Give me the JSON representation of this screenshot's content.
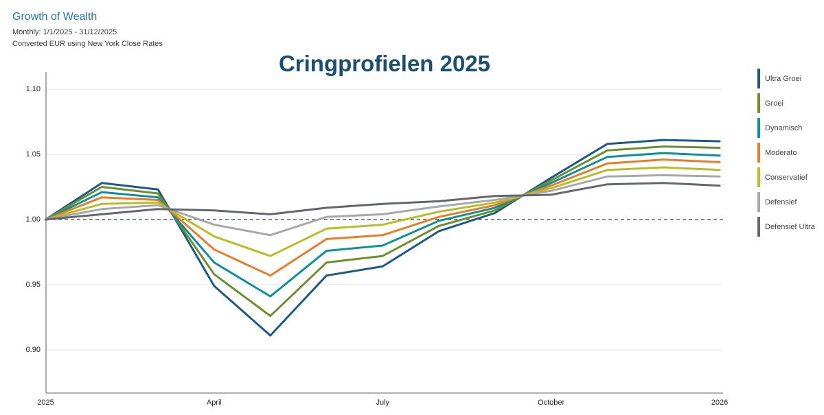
{
  "header": {
    "title": "Growth of Wealth",
    "range": "Monthly: 1/1/2025 - 31/12/2025",
    "currency_note": "Converted EUR using New York Close Rates"
  },
  "chart_data": {
    "type": "line",
    "title": "Cringprofielen 2025",
    "subtitle": "",
    "x_axis": {
      "points_per_series": 13,
      "note": "13 monthly points: start of Jan 2025 plus each month-end through Dec 2025",
      "tick_labels": [
        {
          "label": "2025",
          "month_index": 0
        },
        {
          "label": "April",
          "month_index": 3
        },
        {
          "label": "July",
          "month_index": 6
        },
        {
          "label": "October",
          "month_index": 9
        },
        {
          "label": "2026",
          "month_index": 12
        }
      ]
    },
    "y_axis": {
      "ticks": [
        {
          "label": "1.10",
          "value": 1.1
        },
        {
          "label": "1.05",
          "value": 1.05
        },
        {
          "label": "1.00",
          "value": 1.0
        },
        {
          "label": "0.95",
          "value": 0.95
        },
        {
          "label": "0.90",
          "value": 0.9
        }
      ],
      "ylim": [
        0.867,
        1.116
      ],
      "baseline": 1.0,
      "baseline_style": "dashed"
    },
    "grid": true,
    "legend_position": "right",
    "series": [
      {
        "name": "Ultra Groei",
        "color": "#1a5a85",
        "values": [
          1.0,
          1.028,
          1.023,
          0.949,
          0.911,
          0.957,
          0.964,
          0.991,
          1.005,
          1.032,
          1.058,
          1.061,
          1.06
        ]
      },
      {
        "name": "Groei",
        "color": "#6d8f2b",
        "values": [
          1.0,
          1.025,
          1.02,
          0.958,
          0.926,
          0.967,
          0.972,
          0.995,
          1.007,
          1.03,
          1.053,
          1.056,
          1.055
        ]
      },
      {
        "name": "Dynamisch",
        "color": "#0d8f9f",
        "values": [
          1.0,
          1.021,
          1.017,
          0.967,
          0.941,
          0.976,
          0.98,
          0.999,
          1.009,
          1.028,
          1.048,
          1.051,
          1.049
        ]
      },
      {
        "name": "Moderato",
        "color": "#e87d26",
        "values": [
          1.0,
          1.017,
          1.015,
          0.977,
          0.957,
          0.985,
          0.988,
          1.002,
          1.011,
          1.026,
          1.043,
          1.046,
          1.044
        ]
      },
      {
        "name": "Conservatief",
        "color": "#b9bd23",
        "values": [
          1.0,
          1.012,
          1.013,
          0.987,
          0.972,
          0.993,
          0.996,
          1.006,
          1.013,
          1.024,
          1.038,
          1.04,
          1.038
        ]
      },
      {
        "name": "Defensief",
        "color": "#a7a8aa",
        "values": [
          1.0,
          1.008,
          1.011,
          0.996,
          0.988,
          1.002,
          1.004,
          1.01,
          1.015,
          1.022,
          1.033,
          1.034,
          1.033
        ]
      },
      {
        "name": "Defensief Ultra",
        "color": "#63666a",
        "values": [
          1.0,
          1.004,
          1.008,
          1.007,
          1.004,
          1.009,
          1.012,
          1.014,
          1.018,
          1.019,
          1.027,
          1.028,
          1.026
        ]
      }
    ],
    "colors": {
      "grid": "#e4e4e4",
      "axis": "#7f7f7f",
      "baseline_dash": "#3c3c3c",
      "tick_text": "#222222",
      "title_text": "#1a4f72",
      "header_blue": "#1e73ae"
    }
  }
}
